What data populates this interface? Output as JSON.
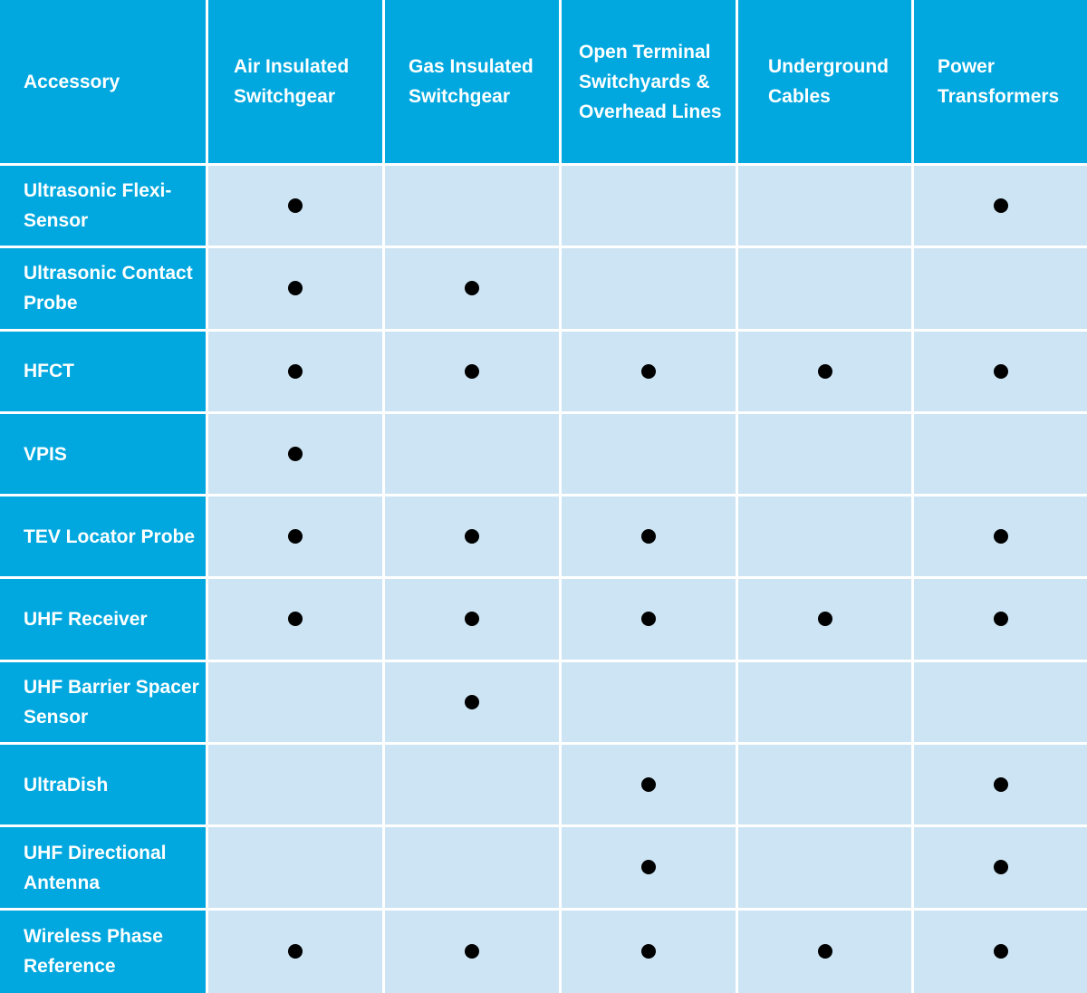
{
  "table": {
    "header": {
      "first": "Accessory",
      "columns": [
        "Air Insulated Switchgear",
        "Gas Insulated Switchgear",
        "Open Terminal Switchyards & Overhead Lines",
        "Underground Cables",
        "Power Transformers"
      ]
    },
    "rows": [
      {
        "label": "Ultrasonic Flexi-Sensor",
        "marks": [
          true,
          false,
          false,
          false,
          true
        ]
      },
      {
        "label": "Ultrasonic Contact Probe",
        "marks": [
          true,
          true,
          false,
          false,
          false
        ]
      },
      {
        "label": "HFCT",
        "marks": [
          true,
          true,
          true,
          true,
          true
        ]
      },
      {
        "label": "VPIS",
        "marks": [
          true,
          false,
          false,
          false,
          false
        ]
      },
      {
        "label": "TEV Locator Probe",
        "marks": [
          true,
          true,
          true,
          false,
          true
        ]
      },
      {
        "label": "UHF Receiver",
        "marks": [
          true,
          true,
          true,
          true,
          true
        ]
      },
      {
        "label": "UHF Barrier Spacer Sensor",
        "marks": [
          false,
          true,
          false,
          false,
          false
        ]
      },
      {
        "label": "UltraDish",
        "marks": [
          false,
          false,
          true,
          false,
          true
        ]
      },
      {
        "label": "UHF Directional Antenna",
        "marks": [
          false,
          false,
          true,
          false,
          true
        ]
      },
      {
        "label": "Wireless Phase Reference",
        "marks": [
          true,
          true,
          true,
          true,
          true
        ]
      }
    ]
  },
  "colors": {
    "header_background": "#00a8df",
    "cell_background": "#cce4f3",
    "mark": "#000000",
    "grid_lines": "#ffffff"
  },
  "icons": {
    "mark": "filled-circle-icon"
  }
}
